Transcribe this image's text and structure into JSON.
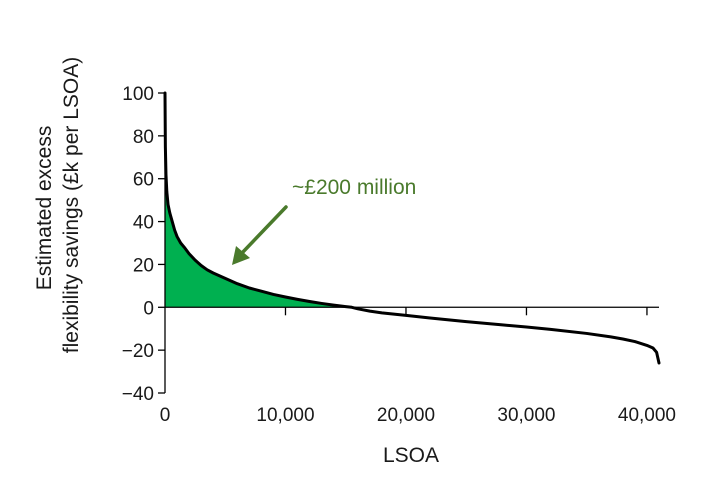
{
  "chart_data": {
    "type": "area",
    "title": "",
    "xlabel": "LSOA",
    "ylabel_lines": [
      "Estimated excess",
      "flexibility savings (£k per LSOA)"
    ],
    "xlim": [
      0,
      41000
    ],
    "ylim": [
      -40,
      100
    ],
    "x_ticks": [
      0,
      10000,
      20000,
      30000,
      40000
    ],
    "x_tick_labels": [
      "0",
      "10,000",
      "20,000",
      "30,000",
      "40,000"
    ],
    "y_ticks": [
      -40,
      -20,
      0,
      20,
      40,
      60,
      80,
      100
    ],
    "y_tick_labels": [
      "−40",
      "−20",
      "0",
      "20",
      "40",
      "60",
      "80",
      "100"
    ],
    "series": [
      {
        "x": [
          0,
          30,
          80,
          150,
          250,
          400,
          600,
          800,
          1000,
          1300,
          1600,
          2000,
          2500,
          3000,
          3500,
          4000,
          5000,
          6000,
          7000,
          8000,
          9000,
          10000,
          11000,
          12000,
          13000,
          14000,
          15000,
          15500,
          16000,
          17000,
          18000,
          20000,
          22000,
          25000,
          28000,
          30000,
          32000,
          35000,
          37000,
          38000,
          39000,
          40000,
          40500,
          40800,
          41000
        ],
        "y": [
          100,
          75,
          62,
          54,
          48,
          44,
          40,
          36,
          33,
          30,
          28,
          25,
          22,
          19.5,
          17.5,
          16,
          13.5,
          11,
          9,
          7.5,
          6,
          4.8,
          3.7,
          2.7,
          1.8,
          1,
          0.3,
          0,
          -0.7,
          -1.8,
          -2.6,
          -3.8,
          -5,
          -6.7,
          -8.2,
          -9.2,
          -10.3,
          -12.2,
          -13.8,
          -14.8,
          -16,
          -17.8,
          -19,
          -21,
          -26
        ]
      }
    ],
    "shaded_region": {
      "x_from": 0,
      "x_to": 15500,
      "color": "#00b050"
    },
    "line_color": "#000000",
    "annotation": {
      "text": "~£200 million",
      "color": "#4a7a2c"
    },
    "grid": false,
    "legend": "none"
  }
}
